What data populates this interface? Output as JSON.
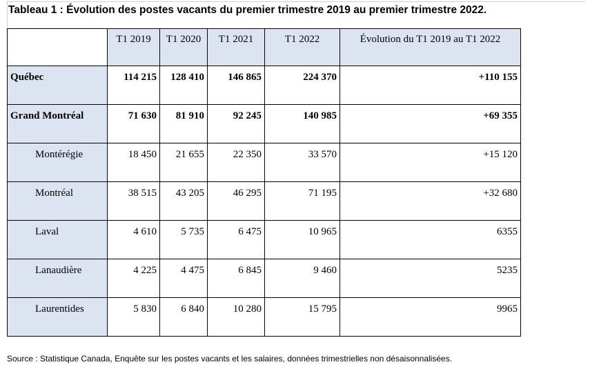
{
  "title": "Tableau 1 : Évolution des postes vacants du premier trimestre 2019 au premier trimestre 2022.",
  "table": {
    "headers": [
      "",
      "T1 2019",
      "T1 2020",
      "T1 2021",
      "T1 2022",
      "Évolution du T1 2019 au T1 2022"
    ],
    "rows": [
      {
        "label": "Québec",
        "values": [
          "114 215",
          "128 410",
          "146 865",
          "224 370",
          "+110 155"
        ]
      },
      {
        "label": "Grand Montréal",
        "values": [
          "71 630",
          "81 910",
          "92 245",
          "140 985",
          "+69 355"
        ]
      },
      {
        "label": "Montérégie",
        "values": [
          "18 450",
          "21 655",
          "22 350",
          "33 570",
          "+15 120"
        ]
      },
      {
        "label": "Montréal",
        "values": [
          "38 515",
          "43 205",
          "46 295",
          "71 195",
          "+32 680"
        ]
      },
      {
        "label": "Laval",
        "values": [
          "4 610",
          "5 735",
          "6 475",
          "10 965",
          "6355"
        ]
      },
      {
        "label": "Lanaudière",
        "values": [
          "4 225",
          "4 475",
          "6 845",
          "9 460",
          "5235"
        ]
      },
      {
        "label": "Laurentides",
        "values": [
          "5 830",
          "6 840",
          "10 280",
          "15 795",
          "9965"
        ]
      }
    ]
  },
  "source": "Source : Statistique Canada, Enquête sur les postes vacants et les salaires, données trimestrielles non désaisonnalisées.",
  "colors": {
    "label_bg": "#dce3f1",
    "border": "#000000"
  }
}
